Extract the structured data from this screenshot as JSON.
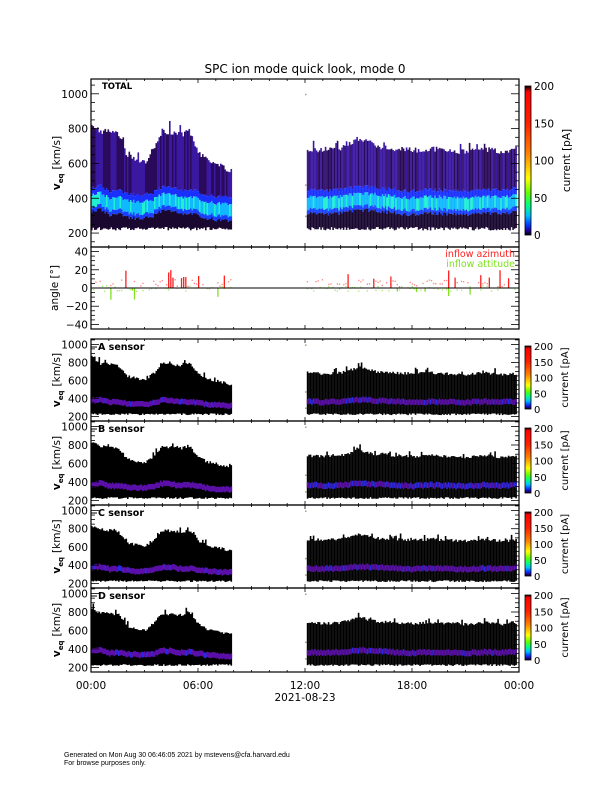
{
  "chart_data": {
    "type": "heatmap",
    "title": "SPC ion mode quick look, mode 0",
    "xlabel": "2021-08-23",
    "x_tick_labels": [
      "00:00",
      "06:00",
      "12:00",
      "18:00",
      "00:00"
    ],
    "x_range_hours": [
      0,
      24
    ],
    "data_segments_hours": [
      [
        0,
        7.85
      ],
      [
        12.1,
        23.8
      ]
    ],
    "panels": [
      {
        "id": "total",
        "type": "heatmap",
        "label": "TOTAL",
        "ylabel": "v_eq [km/s]",
        "ylabel_main": "v",
        "ylabel_sub": "eq",
        "ylabel_unit": "[km/s]",
        "ylim": [
          120,
          1085
        ],
        "y_ticks": [
          200,
          400,
          600,
          800,
          1000
        ],
        "colorbar": {
          "label": "current [pA]",
          "range": [
            0,
            200
          ],
          "ticks": [
            0,
            50,
            100,
            150,
            200
          ]
        },
        "core_speed_profile": {
          "hours": [
            0,
            0.5,
            1,
            1.5,
            2,
            2.5,
            3,
            3.5,
            4,
            4.5,
            5,
            5.5,
            6,
            6.5,
            7,
            7.85,
            12.1,
            13,
            14,
            15,
            16,
            17,
            18,
            19,
            20,
            21,
            22,
            23,
            23.8
          ],
          "core_kms": [
            370,
            380,
            350,
            355,
            340,
            330,
            330,
            345,
            380,
            370,
            355,
            360,
            345,
            330,
            320,
            315,
            360,
            355,
            360,
            380,
            370,
            360,
            350,
            360,
            355,
            350,
            360,
            355,
            365
          ],
          "max_kms": [
            850,
            800,
            800,
            780,
            660,
            640,
            620,
            700,
            800,
            790,
            780,
            800,
            680,
            630,
            610,
            570,
            700,
            690,
            700,
            760,
            710,
            700,
            690,
            700,
            690,
            680,
            700,
            680,
            690
          ]
        },
        "style": "full"
      },
      {
        "id": "angle",
        "type": "scatter",
        "ylabel": "angle [°]",
        "ylim": [
          -45,
          45
        ],
        "y_ticks": [
          -40,
          -20,
          0,
          20,
          40
        ],
        "legend": [
          {
            "label": "inflow azimuth",
            "color": "#ff2020"
          },
          {
            "label": "inflow attitude",
            "color": "#80e020"
          }
        ],
        "legend_position": "top-right"
      },
      {
        "id": "a",
        "type": "heatmap",
        "label": "A sensor",
        "ylabel_main": "v",
        "ylabel_sub": "eq",
        "ylabel_unit": "[km/s]",
        "ylim": [
          150,
          1060
        ],
        "y_ticks": [
          200,
          400,
          600,
          800,
          1000
        ],
        "colorbar": {
          "label": "current [pA]",
          "range": [
            0,
            200
          ],
          "ticks": [
            0,
            50,
            100,
            150,
            200
          ]
        },
        "style": "sensor"
      },
      {
        "id": "b",
        "type": "heatmap",
        "label": "B sensor",
        "ylabel_main": "v",
        "ylabel_sub": "eq",
        "ylabel_unit": "[km/s]",
        "ylim": [
          150,
          1060
        ],
        "y_ticks": [
          200,
          400,
          600,
          800,
          1000
        ],
        "colorbar": {
          "label": "current [pA]",
          "range": [
            0,
            200
          ],
          "ticks": [
            0,
            50,
            100,
            150,
            200
          ]
        },
        "style": "sensor"
      },
      {
        "id": "c",
        "type": "heatmap",
        "label": "C sensor",
        "ylabel_main": "v",
        "ylabel_sub": "eq",
        "ylabel_unit": "[km/s]",
        "ylim": [
          150,
          1060
        ],
        "y_ticks": [
          200,
          400,
          600,
          800,
          1000
        ],
        "colorbar": {
          "label": "current [pA]",
          "range": [
            0,
            200
          ],
          "ticks": [
            0,
            50,
            100,
            150,
            200
          ]
        },
        "style": "sensor"
      },
      {
        "id": "d",
        "type": "heatmap",
        "label": "D sensor",
        "ylabel_main": "v",
        "ylabel_sub": "eq",
        "ylabel_unit": "[km/s]",
        "ylim": [
          150,
          1060
        ],
        "y_ticks": [
          200,
          400,
          600,
          800,
          1000
        ],
        "colorbar": {
          "label": "current [pA]",
          "range": [
            0,
            200
          ],
          "ticks": [
            0,
            50,
            100,
            150,
            200
          ]
        },
        "style": "sensor"
      }
    ],
    "colormap": [
      "#000000",
      "#3000a0",
      "#2020ff",
      "#00a0ff",
      "#00ffd0",
      "#40ff40",
      "#ffff00",
      "#ff8000",
      "#ff0000",
      "#d00000"
    ]
  },
  "footer": {
    "line1": "Generated on Mon Aug 30 06:46:05 2021 by mstevens@cfa.harvard.edu",
    "line2": "For browse purposes only."
  }
}
